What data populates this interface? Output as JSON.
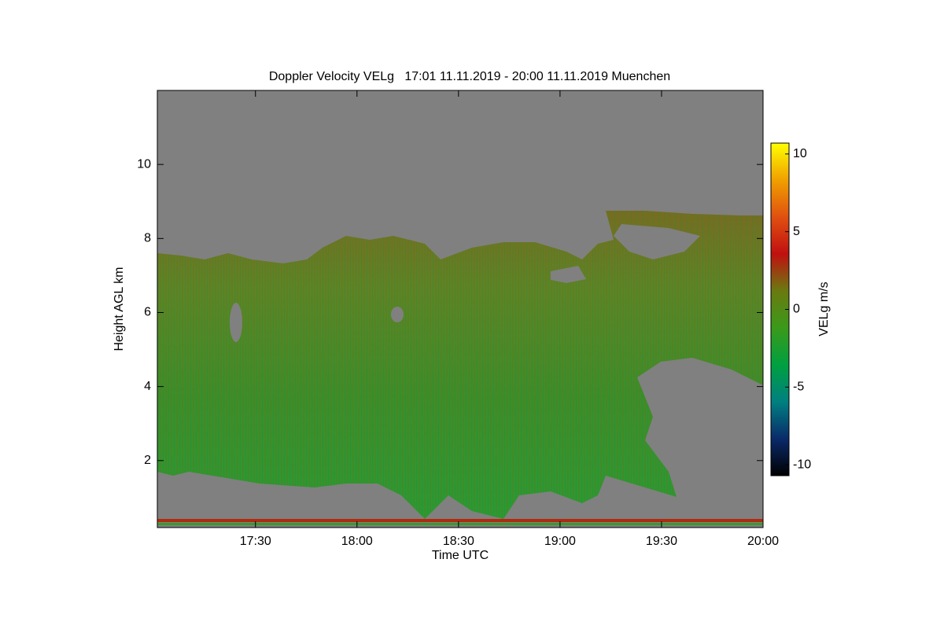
{
  "chart_data": {
    "type": "heatmap",
    "title": "Doppler Velocity VELg   17:01 11.11.2019 - 20:00 11.11.2019 Muenchen",
    "x_label": "Time UTC",
    "y_label": "Height AGL km",
    "xlim": [
      1021,
      1200
    ],
    "xticks": [
      {
        "value": 1050,
        "label": "17:30"
      },
      {
        "value": 1080,
        "label": "18:00"
      },
      {
        "value": 1110,
        "label": "18:30"
      },
      {
        "value": 1140,
        "label": "19:00"
      },
      {
        "value": 1170,
        "label": "19:30"
      },
      {
        "value": 1200,
        "label": "20:00"
      }
    ],
    "ylim": [
      0.19,
      12.0
    ],
    "yticks": [
      2,
      4,
      6,
      8,
      10
    ],
    "colorbar": {
      "label": "VELg m/s",
      "clim": [
        -10.7,
        10.7
      ],
      "ticks": [
        -10,
        -5,
        0,
        5,
        10
      ],
      "colors": [
        "#000000",
        "#0a2a6a",
        "#008080",
        "#00a040",
        "#3a9a1a",
        "#6a7a10",
        "#c01010",
        "#e05010",
        "#f0a000",
        "#ffff00"
      ]
    },
    "missing_color": "#808080"
  }
}
